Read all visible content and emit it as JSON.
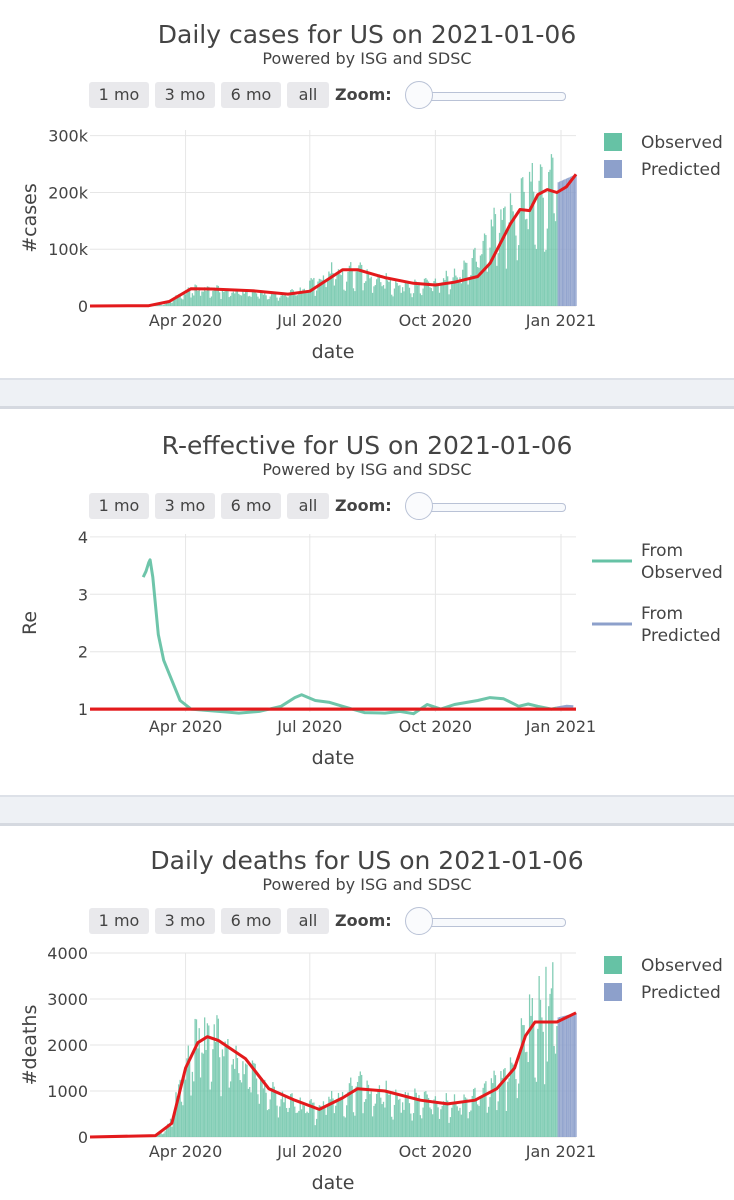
{
  "controls": {
    "buttons": [
      "1 mo",
      "3 mo",
      "6 mo",
      "all"
    ],
    "zoom_label": "Zoom:"
  },
  "colors": {
    "observed": "#66c2a5",
    "predicted": "#8da0cb",
    "trend": "#e31a1c"
  },
  "charts": [
    {
      "title": "Daily cases for US on 2021-01-06",
      "subtitle": "Powered by ISG and SDSC",
      "chart_data": {
        "type": "bar",
        "xlabel": "date",
        "ylabel": "#cases",
        "xlim": [
          "2020-01-22",
          "2021-01-12"
        ],
        "ylim": [
          0,
          310000
        ],
        "x_ticks": [
          "Apr 2020",
          "Jul 2020",
          "Oct 2020",
          "Jan 2021"
        ],
        "y_ticks": [
          "0",
          "100k",
          "200k",
          "300k"
        ],
        "y_tick_values": [
          0,
          100000,
          200000,
          300000
        ],
        "legend": [
          "Observed",
          "Predicted"
        ],
        "legend_position": "right",
        "series": [
          {
            "name": "Observed",
            "kind": "bar",
            "start": "2020-01-22",
            "end": "2020-12-29",
            "trend": [
              [
                "2020-01-22",
                0
              ],
              [
                "2020-03-01",
                100
              ],
              [
                "2020-03-15",
                2500
              ],
              [
                "2020-03-25",
                15000
              ],
              [
                "2020-04-05",
                30000
              ],
              [
                "2020-04-15",
                30500
              ],
              [
                "2020-05-01",
                28000
              ],
              [
                "2020-05-20",
                24000
              ],
              [
                "2020-06-10",
                21000
              ],
              [
                "2020-06-25",
                28000
              ],
              [
                "2020-07-05",
                45000
              ],
              [
                "2020-07-20",
                66000
              ],
              [
                "2020-08-01",
                65000
              ],
              [
                "2020-08-15",
                56000
              ],
              [
                "2020-09-01",
                42000
              ],
              [
                "2020-09-15",
                37000
              ],
              [
                "2020-10-01",
                42000
              ],
              [
                "2020-10-15",
                55000
              ],
              [
                "2020-11-01",
                88000
              ],
              [
                "2020-11-15",
                145000
              ],
              [
                "2020-11-25",
                172000
              ],
              [
                "2020-12-05",
                190000
              ],
              [
                "2020-12-15",
                218000
              ],
              [
                "2020-12-29",
                210000
              ]
            ],
            "spikes": [
              [
                "2020-07-17",
                77000
              ],
              [
                "2020-11-07",
                125000
              ],
              [
                "2020-12-04",
                227000
              ],
              [
                "2020-12-18",
                245000
              ],
              [
                "2020-12-24",
                240000
              ],
              [
                "2021-01-02",
                298000
              ]
            ]
          },
          {
            "name": "Predicted",
            "kind": "bar",
            "start": "2020-12-30",
            "end": "2021-01-12",
            "trend": [
              [
                "2020-12-30",
                218000
              ],
              [
                "2021-01-12",
                232000
              ]
            ]
          }
        ],
        "trend_line": [
          [
            "2020-01-22",
            0
          ],
          [
            "2020-03-05",
            600
          ],
          [
            "2020-03-20",
            8000
          ],
          [
            "2020-04-05",
            30500
          ],
          [
            "2020-04-20",
            30000
          ],
          [
            "2020-05-20",
            27000
          ],
          [
            "2020-06-15",
            21000
          ],
          [
            "2020-07-01",
            26000
          ],
          [
            "2020-07-15",
            48000
          ],
          [
            "2020-07-25",
            64000
          ],
          [
            "2020-08-05",
            64000
          ],
          [
            "2020-08-25",
            50000
          ],
          [
            "2020-09-15",
            40000
          ],
          [
            "2020-10-01",
            37000
          ],
          [
            "2020-10-15",
            42000
          ],
          [
            "2020-11-01",
            52000
          ],
          [
            "2020-11-10",
            75000
          ],
          [
            "2020-11-25",
            145000
          ],
          [
            "2020-12-02",
            170000
          ],
          [
            "2020-12-09",
            168000
          ],
          [
            "2020-12-15",
            196000
          ],
          [
            "2020-12-22",
            205000
          ],
          [
            "2020-12-29",
            200000
          ],
          [
            "2021-01-05",
            210000
          ],
          [
            "2021-01-12",
            232000
          ]
        ]
      }
    },
    {
      "title": "R-effective for US on 2021-01-06",
      "subtitle": "Powered by ISG and SDSC",
      "chart_data": {
        "type": "line",
        "xlabel": "date",
        "ylabel": "Re",
        "xlim": [
          "2020-01-22",
          "2021-01-12"
        ],
        "ylim": [
          0.95,
          4.05
        ],
        "x_ticks": [
          "Apr 2020",
          "Jul 2020",
          "Oct 2020",
          "Jan 2021"
        ],
        "y_ticks": [
          "1",
          "2",
          "3",
          "4"
        ],
        "y_tick_values": [
          1,
          2,
          3,
          4
        ],
        "legend": [
          "From Observed",
          "From Predicted"
        ],
        "legend_position": "right",
        "series": [
          {
            "name": "From Observed",
            "points": [
              [
                "2020-03-01",
                3.3
              ],
              [
                "2020-03-03",
                3.4
              ],
              [
                "2020-03-05",
                3.55
              ],
              [
                "2020-03-06",
                3.6
              ],
              [
                "2020-03-08",
                3.3
              ],
              [
                "2020-03-12",
                2.3
              ],
              [
                "2020-03-16",
                1.85
              ],
              [
                "2020-03-22",
                1.5
              ],
              [
                "2020-03-28",
                1.15
              ],
              [
                "2020-04-05",
                1.0
              ],
              [
                "2020-04-15",
                0.98
              ],
              [
                "2020-05-01",
                0.95
              ],
              [
                "2020-05-10",
                0.93
              ],
              [
                "2020-05-25",
                0.96
              ],
              [
                "2020-06-10",
                1.05
              ],
              [
                "2020-06-20",
                1.2
              ],
              [
                "2020-06-25",
                1.25
              ],
              [
                "2020-07-05",
                1.15
              ],
              [
                "2020-07-15",
                1.12
              ],
              [
                "2020-07-25",
                1.05
              ],
              [
                "2020-08-10",
                0.94
              ],
              [
                "2020-08-25",
                0.93
              ],
              [
                "2020-09-05",
                0.96
              ],
              [
                "2020-09-15",
                0.92
              ],
              [
                "2020-09-25",
                1.08
              ],
              [
                "2020-10-05",
                1.0
              ],
              [
                "2020-10-15",
                1.08
              ],
              [
                "2020-11-01",
                1.15
              ],
              [
                "2020-11-10",
                1.2
              ],
              [
                "2020-11-20",
                1.18
              ],
              [
                "2020-12-01",
                1.05
              ],
              [
                "2020-12-08",
                1.09
              ],
              [
                "2020-12-15",
                1.05
              ],
              [
                "2020-12-25",
                1.0
              ],
              [
                "2020-12-29",
                1.02
              ]
            ]
          },
          {
            "name": "From Predicted",
            "points": [
              [
                "2020-12-29",
                1.02
              ],
              [
                "2021-01-05",
                1.05
              ],
              [
                "2021-01-10",
                1.04
              ]
            ]
          }
        ],
        "reference_line": 1.0
      }
    },
    {
      "title": "Daily deaths for US on 2021-01-06",
      "subtitle": "Powered by ISG and SDSC",
      "chart_data": {
        "type": "bar",
        "xlabel": "date",
        "ylabel": "#deaths",
        "xlim": [
          "2020-01-22",
          "2021-01-12"
        ],
        "ylim": [
          0,
          4000
        ],
        "x_ticks": [
          "Apr 2020",
          "Jul 2020",
          "Oct 2020",
          "Jan 2021"
        ],
        "y_ticks": [
          "0",
          "1000",
          "2000",
          "3000",
          "4000"
        ],
        "y_tick_values": [
          0,
          1000,
          2000,
          3000,
          4000
        ],
        "legend": [
          "Observed",
          "Predicted"
        ],
        "legend_position": "right",
        "series": [
          {
            "name": "Observed",
            "kind": "bar",
            "start": "2020-01-22",
            "end": "2020-12-29",
            "trend": [
              [
                "2020-01-22",
                0
              ],
              [
                "2020-03-10",
                10
              ],
              [
                "2020-03-20",
                250
              ],
              [
                "2020-04-01",
                1500
              ],
              [
                "2020-04-10",
                2200
              ],
              [
                "2020-04-25",
                2100
              ],
              [
                "2020-05-10",
                1700
              ],
              [
                "2020-06-01",
                1100
              ],
              [
                "2020-06-20",
                750
              ],
              [
                "2020-07-05",
                650
              ],
              [
                "2020-07-20",
                950
              ],
              [
                "2020-08-05",
                1150
              ],
              [
                "2020-08-25",
                1000
              ],
              [
                "2020-09-15",
                850
              ],
              [
                "2020-10-05",
                750
              ],
              [
                "2020-10-25",
                800
              ],
              [
                "2020-11-10",
                1050
              ],
              [
                "2020-11-25",
                1500
              ],
              [
                "2020-12-05",
                2300
              ],
              [
                "2020-12-15",
                2600
              ],
              [
                "2020-12-29",
                2550
              ]
            ],
            "spikes": [
              [
                "2020-04-15",
                2600
              ],
              [
                "2020-04-22",
                2450
              ],
              [
                "2020-12-09",
                3100
              ],
              [
                "2020-12-16",
                3500
              ],
              [
                "2020-12-21",
                3700
              ],
              [
                "2020-12-26",
                3800
              ]
            ]
          },
          {
            "name": "Predicted",
            "kind": "bar",
            "start": "2020-12-30",
            "end": "2021-01-12",
            "trend": [
              [
                "2020-12-30",
                2600
              ],
              [
                "2021-01-12",
                2700
              ]
            ]
          }
        ],
        "trend_line": [
          [
            "2020-01-22",
            0
          ],
          [
            "2020-03-10",
            30
          ],
          [
            "2020-03-22",
            300
          ],
          [
            "2020-04-01",
            1500
          ],
          [
            "2020-04-10",
            2050
          ],
          [
            "2020-04-17",
            2180
          ],
          [
            "2020-04-25",
            2100
          ],
          [
            "2020-05-15",
            1700
          ],
          [
            "2020-06-01",
            1050
          ],
          [
            "2020-06-20",
            800
          ],
          [
            "2020-07-08",
            600
          ],
          [
            "2020-07-25",
            850
          ],
          [
            "2020-08-05",
            1050
          ],
          [
            "2020-08-25",
            1000
          ],
          [
            "2020-09-20",
            800
          ],
          [
            "2020-10-10",
            720
          ],
          [
            "2020-10-30",
            800
          ],
          [
            "2020-11-15",
            1050
          ],
          [
            "2020-11-28",
            1500
          ],
          [
            "2020-12-06",
            2200
          ],
          [
            "2020-12-13",
            2500
          ],
          [
            "2020-12-29",
            2500
          ],
          [
            "2021-01-12",
            2700
          ]
        ]
      }
    }
  ]
}
